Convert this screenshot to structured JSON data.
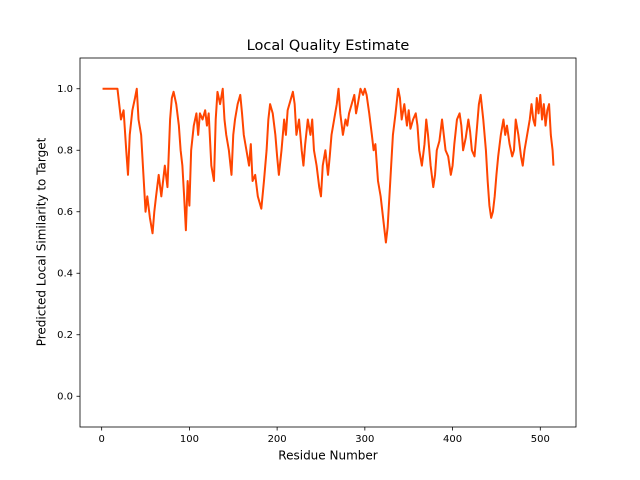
{
  "chart_data": {
    "type": "line",
    "title": "Local Quality Estimate",
    "x_label": "Residue Number",
    "y_label": "Predicted Local Similarity to Target",
    "color": "#ff4500",
    "x": [
      1,
      5,
      10,
      15,
      18,
      20,
      22,
      25,
      28,
      30,
      32,
      35,
      38,
      40,
      42,
      45,
      48,
      50,
      52,
      55,
      58,
      60,
      62,
      65,
      68,
      70,
      72,
      75,
      78,
      80,
      82,
      85,
      88,
      90,
      92,
      94,
      96,
      98,
      100,
      102,
      105,
      108,
      110,
      112,
      115,
      118,
      120,
      122,
      125,
      128,
      130,
      132,
      135,
      138,
      140,
      142,
      145,
      148,
      150,
      152,
      155,
      158,
      160,
      162,
      165,
      168,
      170,
      172,
      175,
      178,
      180,
      182,
      185,
      188,
      190,
      192,
      195,
      198,
      200,
      202,
      205,
      208,
      210,
      212,
      215,
      218,
      220,
      222,
      225,
      228,
      230,
      232,
      235,
      238,
      240,
      242,
      245,
      248,
      250,
      252,
      255,
      258,
      260,
      262,
      265,
      268,
      270,
      272,
      275,
      278,
      280,
      282,
      285,
      288,
      290,
      292,
      295,
      298,
      300,
      302,
      305,
      308,
      310,
      312,
      315,
      318,
      320,
      322,
      324,
      326,
      328,
      330,
      332,
      335,
      338,
      340,
      342,
      345,
      348,
      350,
      352,
      355,
      358,
      360,
      362,
      365,
      368,
      370,
      372,
      375,
      378,
      380,
      382,
      385,
      388,
      390,
      392,
      395,
      398,
      400,
      402,
      405,
      408,
      410,
      412,
      415,
      418,
      420,
      422,
      425,
      428,
      430,
      432,
      435,
      438,
      440,
      442,
      444,
      446,
      448,
      450,
      452,
      455,
      458,
      460,
      462,
      465,
      468,
      470,
      472,
      475,
      478,
      480,
      482,
      485,
      488,
      490,
      492,
      494,
      496,
      498,
      500,
      502,
      504,
      506,
      508,
      510,
      512,
      514,
      515
    ],
    "values": [
      1.0,
      1.0,
      1.0,
      1.0,
      1.0,
      0.95,
      0.9,
      0.93,
      0.8,
      0.72,
      0.85,
      0.93,
      0.97,
      1.0,
      0.9,
      0.85,
      0.7,
      0.6,
      0.65,
      0.58,
      0.53,
      0.6,
      0.65,
      0.72,
      0.65,
      0.7,
      0.75,
      0.68,
      0.9,
      0.97,
      0.99,
      0.95,
      0.88,
      0.8,
      0.75,
      0.65,
      0.54,
      0.7,
      0.62,
      0.8,
      0.88,
      0.92,
      0.85,
      0.92,
      0.9,
      0.93,
      0.88,
      0.92,
      0.75,
      0.7,
      0.9,
      0.99,
      0.95,
      1.0,
      0.9,
      0.85,
      0.8,
      0.72,
      0.85,
      0.9,
      0.95,
      0.98,
      0.92,
      0.85,
      0.8,
      0.75,
      0.82,
      0.7,
      0.72,
      0.65,
      0.63,
      0.61,
      0.7,
      0.8,
      0.9,
      0.95,
      0.92,
      0.85,
      0.78,
      0.72,
      0.8,
      0.9,
      0.85,
      0.93,
      0.96,
      0.99,
      0.95,
      0.85,
      0.9,
      0.8,
      0.75,
      0.82,
      0.9,
      0.85,
      0.9,
      0.8,
      0.75,
      0.68,
      0.65,
      0.75,
      0.8,
      0.72,
      0.78,
      0.85,
      0.9,
      0.95,
      1.0,
      0.92,
      0.85,
      0.9,
      0.88,
      0.92,
      0.95,
      0.98,
      0.92,
      0.95,
      1.0,
      0.98,
      1.0,
      0.98,
      0.92,
      0.85,
      0.8,
      0.82,
      0.7,
      0.65,
      0.6,
      0.55,
      0.5,
      0.55,
      0.65,
      0.75,
      0.85,
      0.92,
      1.0,
      0.97,
      0.9,
      0.95,
      0.88,
      0.93,
      0.87,
      0.9,
      0.92,
      0.88,
      0.8,
      0.75,
      0.82,
      0.9,
      0.85,
      0.75,
      0.68,
      0.72,
      0.8,
      0.83,
      0.9,
      0.85,
      0.8,
      0.78,
      0.72,
      0.75,
      0.82,
      0.9,
      0.92,
      0.88,
      0.8,
      0.84,
      0.9,
      0.86,
      0.8,
      0.78,
      0.88,
      0.95,
      0.98,
      0.9,
      0.8,
      0.7,
      0.62,
      0.58,
      0.6,
      0.65,
      0.72,
      0.78,
      0.85,
      0.9,
      0.85,
      0.88,
      0.82,
      0.78,
      0.8,
      0.9,
      0.85,
      0.78,
      0.75,
      0.8,
      0.85,
      0.9,
      0.95,
      0.9,
      0.88,
      0.97,
      0.92,
      0.98,
      0.9,
      0.95,
      0.88,
      0.93,
      0.95,
      0.85,
      0.8,
      0.75
    ],
    "xlim": [
      -24.7,
      540.7
    ],
    "ylim": [
      -0.1,
      1.1
    ],
    "xticks": [
      0,
      100,
      200,
      300,
      400,
      500
    ],
    "yticks": [
      {
        "value": 0,
        "label": "0.0"
      },
      0.2,
      0.4,
      0.6,
      0.8,
      {
        "value": 1,
        "label": "1.0"
      }
    ]
  }
}
